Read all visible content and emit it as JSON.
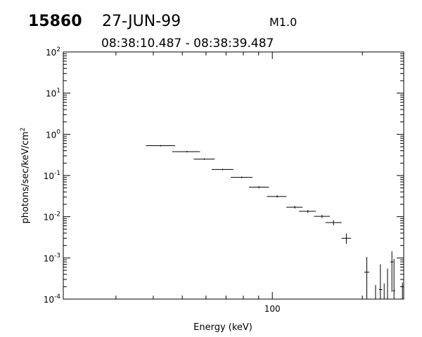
{
  "header": {
    "event_id": "15860",
    "date": "27-JUN-99",
    "class_label": "M1.0",
    "time_range": "08:38:10.487 - 08:38:39.487"
  },
  "chart_data": {
    "type": "scatter",
    "xlabel": "Energy (keV)",
    "ylabel": "photons/sec/keV/cm",
    "ylabel_superscript": "2",
    "x_scale": "log",
    "y_scale": "log",
    "xlim": [
      20,
      275
    ],
    "ylim": [
      0.0001,
      100
    ],
    "x_tick_labels": [
      {
        "value": 100,
        "label": "100"
      }
    ],
    "y_tick_labels": [
      {
        "value": 100,
        "base": "10",
        "exp": "2"
      },
      {
        "value": 10,
        "base": "10",
        "exp": "1"
      },
      {
        "value": 1,
        "base": "10",
        "exp": "0"
      },
      {
        "value": 0.1,
        "base": "10",
        "exp": "-1"
      },
      {
        "value": 0.01,
        "base": "10",
        "exp": "-2"
      },
      {
        "value": 0.001,
        "base": "10",
        "exp": "-3"
      },
      {
        "value": 0.0001,
        "base": "10",
        "exp": "-4"
      }
    ],
    "grid": false,
    "legend": "none",
    "series": [
      {
        "marker": "cross-errorbar",
        "color": "#000000",
        "points": [
          {
            "x": 42.3,
            "xlo": 37.8,
            "xhi": 47.3,
            "y": 0.53,
            "ylo": 0.51,
            "yhi": 0.55
          },
          {
            "x": 51.8,
            "xlo": 46.2,
            "xhi": 57.3,
            "y": 0.38,
            "ylo": 0.365,
            "yhi": 0.395
          },
          {
            "x": 59.2,
            "xlo": 54.6,
            "xhi": 64.2,
            "y": 0.25,
            "ylo": 0.24,
            "yhi": 0.26
          },
          {
            "x": 68.2,
            "xlo": 62.7,
            "xhi": 74.1,
            "y": 0.14,
            "ylo": 0.134,
            "yhi": 0.146
          },
          {
            "x": 79.0,
            "xlo": 72.6,
            "xhi": 85.8,
            "y": 0.09,
            "ylo": 0.086,
            "yhi": 0.094
          },
          {
            "x": 90.2,
            "xlo": 83.5,
            "xhi": 97.5,
            "y": 0.052,
            "ylo": 0.049,
            "yhi": 0.055
          },
          {
            "x": 103.8,
            "xlo": 95.9,
            "xhi": 111.4,
            "y": 0.031,
            "ylo": 0.029,
            "yhi": 0.033
          },
          {
            "x": 118.9,
            "xlo": 111.4,
            "xhi": 126.3,
            "y": 0.017,
            "ylo": 0.0158,
            "yhi": 0.0182
          },
          {
            "x": 131.5,
            "xlo": 122.8,
            "xhi": 139.8,
            "y": 0.0135,
            "ylo": 0.0125,
            "yhi": 0.0145
          },
          {
            "x": 146.6,
            "xlo": 137.8,
            "xhi": 155.9,
            "y": 0.0102,
            "ylo": 0.0093,
            "yhi": 0.0111
          },
          {
            "x": 160.2,
            "xlo": 150.6,
            "xhi": 170.5,
            "y": 0.0072,
            "ylo": 0.0062,
            "yhi": 0.0082
          },
          {
            "x": 176.8,
            "xlo": 170.5,
            "xhi": 183.2,
            "y": 0.003,
            "ylo": 0.0022,
            "yhi": 0.0039
          },
          {
            "x": 207.0,
            "xlo": 203.0,
            "xhi": 211.0,
            "y": 0.00045,
            "ylo": 0.0001,
            "yhi": 0.00105
          },
          {
            "x": 221.4,
            "xlo": 220.0,
            "xhi": 223.0,
            "y": 0.0001,
            "ylo": 0.0001,
            "yhi": 0.00022
          },
          {
            "x": 229.8,
            "xlo": 227.0,
            "xhi": 233.0,
            "y": 0.00017,
            "ylo": 0.0001,
            "yhi": 0.0007
          },
          {
            "x": 236.6,
            "xlo": 235.0,
            "xhi": 238.0,
            "y": 0.0001,
            "ylo": 0.0001,
            "yhi": 0.00024
          },
          {
            "x": 242.8,
            "xlo": 241.0,
            "xhi": 244.0,
            "y": 0.0001,
            "ylo": 0.0001,
            "yhi": 0.00055
          },
          {
            "x": 251.1,
            "xlo": 248.0,
            "xhi": 254.0,
            "y": 0.0008,
            "ylo": 0.00015,
            "yhi": 0.00145
          },
          {
            "x": 255.2,
            "xlo": 253.0,
            "xhi": 257.5,
            "y": 0.00016,
            "ylo": 0.0001,
            "yhi": 0.00095
          },
          {
            "x": 272.3,
            "xlo": 271.0,
            "xhi": 274.0,
            "y": 0.0001,
            "ylo": 0.0001,
            "yhi": 0.00025
          }
        ]
      }
    ]
  }
}
